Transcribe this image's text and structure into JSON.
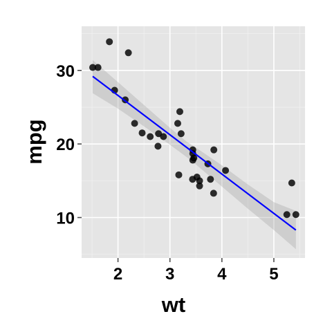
{
  "chart_data": {
    "type": "scatter",
    "xlabel": "wt",
    "ylabel": "mpg",
    "xlim": [
      1.3,
      5.6
    ],
    "ylim": [
      4.5,
      36.0
    ],
    "x_ticks": [
      2,
      3,
      4,
      5
    ],
    "y_ticks": [
      10,
      20,
      30
    ],
    "x_tick_labels": [
      "2",
      "3",
      "4",
      "5"
    ],
    "y_tick_labels": [
      "10",
      "20",
      "30"
    ],
    "grid": true,
    "points": [
      {
        "x": 2.62,
        "y": 21.0
      },
      {
        "x": 2.875,
        "y": 21.0
      },
      {
        "x": 2.32,
        "y": 22.8
      },
      {
        "x": 3.215,
        "y": 21.4
      },
      {
        "x": 3.44,
        "y": 18.7
      },
      {
        "x": 3.46,
        "y": 18.1
      },
      {
        "x": 3.57,
        "y": 14.3
      },
      {
        "x": 3.19,
        "y": 24.4
      },
      {
        "x": 3.15,
        "y": 22.8
      },
      {
        "x": 3.44,
        "y": 19.2
      },
      {
        "x": 3.44,
        "y": 17.8
      },
      {
        "x": 4.07,
        "y": 16.4
      },
      {
        "x": 3.73,
        "y": 17.3
      },
      {
        "x": 3.78,
        "y": 15.2
      },
      {
        "x": 5.25,
        "y": 10.4
      },
      {
        "x": 5.424,
        "y": 10.4
      },
      {
        "x": 5.345,
        "y": 14.7
      },
      {
        "x": 2.2,
        "y": 32.4
      },
      {
        "x": 1.615,
        "y": 30.4
      },
      {
        "x": 1.835,
        "y": 33.9
      },
      {
        "x": 2.465,
        "y": 21.5
      },
      {
        "x": 3.52,
        "y": 15.5
      },
      {
        "x": 3.435,
        "y": 15.2
      },
      {
        "x": 3.84,
        "y": 13.3
      },
      {
        "x": 3.845,
        "y": 19.2
      },
      {
        "x": 1.935,
        "y": 27.3
      },
      {
        "x": 2.14,
        "y": 26.0
      },
      {
        "x": 1.513,
        "y": 30.4
      },
      {
        "x": 3.17,
        "y": 15.8
      },
      {
        "x": 2.77,
        "y": 19.7
      },
      {
        "x": 3.57,
        "y": 15.0
      },
      {
        "x": 2.78,
        "y": 21.4
      }
    ],
    "fit_line": {
      "x": [
        1.513,
        5.424
      ],
      "y": [
        29.2,
        8.3
      ],
      "color": "#0000ff"
    },
    "confidence_band": {
      "x": [
        1.513,
        2.0,
        2.5,
        3.0,
        3.325,
        3.5,
        4.0,
        4.5,
        5.0,
        5.424
      ],
      "lower": [
        26.9,
        24.8,
        22.4,
        19.9,
        18.2,
        17.2,
        14.2,
        11.2,
        8.3,
        5.7
      ],
      "upper": [
        31.4,
        28.4,
        25.3,
        22.2,
        20.3,
        19.5,
        17.1,
        14.5,
        12.1,
        10.9
      ]
    },
    "colors": {
      "panel": "#e5e5e5",
      "grid": "#ffffff",
      "points": "#000000",
      "band": "#999999"
    }
  }
}
